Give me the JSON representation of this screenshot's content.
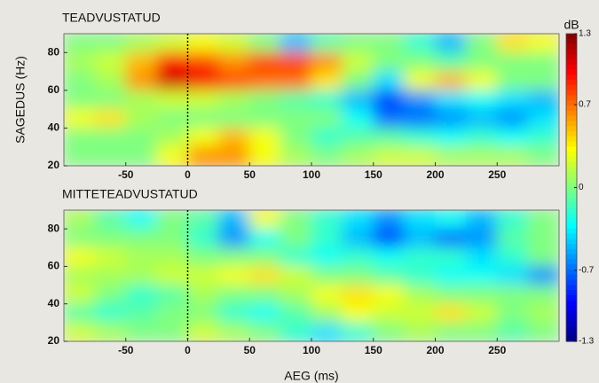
{
  "chart_data": [
    {
      "type": "heatmap",
      "title": "TEADVUSTATUD",
      "ylabel": "SAGEDUS (Hz)",
      "x": [
        -87.5,
        -62.5,
        -37.5,
        -12.5,
        12.5,
        37.5,
        62.5,
        87.5,
        112.5,
        137.5,
        162.5,
        187.5,
        212.5,
        237.5,
        262.5,
        287.5
      ],
      "y": [
        85,
        75,
        65,
        55,
        45,
        35,
        25
      ],
      "values": [
        [
          0,
          0,
          0.1,
          0.2,
          0.3,
          0.2,
          0,
          -0.5,
          -0.1,
          0,
          0,
          -0.2,
          -0.5,
          0,
          0.4,
          0.3
        ],
        [
          0.1,
          0.2,
          0.5,
          0.9,
          0.8,
          0.6,
          0.8,
          0.8,
          0.6,
          0.2,
          0,
          0,
          -0.1,
          0,
          0,
          0
        ],
        [
          0,
          0.1,
          0.6,
          1.1,
          1.0,
          0.8,
          0.7,
          0.7,
          0.4,
          0,
          -0.4,
          0.3,
          0.5,
          0.3,
          0,
          0
        ],
        [
          0,
          0,
          0.1,
          0.2,
          0.2,
          0.1,
          0,
          -0.1,
          -0.2,
          -0.5,
          -0.8,
          -0.6,
          -0.4,
          -0.3,
          -0.4,
          -0.5
        ],
        [
          0.3,
          0.4,
          0.1,
          0,
          0,
          0,
          0,
          0,
          0,
          -0.3,
          -0.7,
          -0.7,
          -0.6,
          -0.5,
          -0.6,
          -0.4
        ],
        [
          0,
          0,
          0,
          0.1,
          0.3,
          0.5,
          0.3,
          0,
          -0.2,
          -0.1,
          -0.1,
          -0.2,
          -0.3,
          -0.2,
          -0.3,
          -0.2
        ],
        [
          0,
          0,
          0,
          0.3,
          0.6,
          0.6,
          0.3,
          0.1,
          0,
          0.1,
          0.2,
          0.2,
          0.1,
          0.1,
          0.1,
          0
        ]
      ],
      "xlim": [
        -100,
        300
      ],
      "ylim": [
        20,
        90
      ],
      "xticks": [
        -50,
        0,
        50,
        100,
        150,
        200,
        250
      ],
      "yticks": [
        20,
        40,
        60,
        80
      ],
      "vline": 0,
      "colorbar": {
        "label": "dB",
        "lim": [
          -1.3,
          1.3
        ],
        "ticks": [
          1.3,
          0.7,
          0,
          -0.7,
          -1.3
        ]
      }
    },
    {
      "type": "heatmap",
      "title": "MITTETEADVUSTATUD",
      "xlabel": "AEG (ms)",
      "x": [
        -87.5,
        -62.5,
        -37.5,
        -12.5,
        12.5,
        37.5,
        62.5,
        87.5,
        112.5,
        137.5,
        162.5,
        187.5,
        212.5,
        237.5,
        262.5,
        287.5
      ],
      "y": [
        85,
        75,
        65,
        55,
        45,
        35,
        25
      ],
      "values": [
        [
          0.1,
          -0.1,
          -0.3,
          0,
          -0.1,
          -0.5,
          0.3,
          0,
          -0.2,
          -0.4,
          -0.6,
          -0.4,
          -0.3,
          -0.5,
          -0.2,
          0
        ],
        [
          0,
          0,
          0,
          0,
          -0.2,
          -0.6,
          -0.3,
          0,
          -0.2,
          -0.5,
          -0.8,
          -0.5,
          -0.7,
          -0.6,
          -0.1,
          0
        ],
        [
          0.3,
          0.2,
          0.1,
          0.1,
          0,
          0,
          0,
          -0.2,
          -0.3,
          -0.2,
          -0.3,
          -0.2,
          -0.2,
          -0.4,
          -0.2,
          0
        ],
        [
          0.1,
          0.1,
          0.1,
          0.2,
          0.2,
          0.3,
          0.4,
          0.2,
          0,
          0,
          -0.1,
          -0.2,
          -0.3,
          -0.3,
          -0.4,
          -0.6
        ],
        [
          0.2,
          0,
          -0.2,
          -0.1,
          0.1,
          0,
          0,
          0.1,
          0.3,
          0.4,
          0.3,
          0.1,
          0,
          0,
          0,
          0
        ],
        [
          -0.1,
          -0.2,
          -0.1,
          0,
          0,
          -0.2,
          -0.3,
          -0.1,
          0.1,
          0.3,
          0.2,
          0.2,
          0.4,
          0.2,
          0,
          0.1
        ],
        [
          0.2,
          0.1,
          0,
          0,
          0.2,
          0.1,
          0,
          -0.2,
          -0.4,
          -0.2,
          0,
          0.1,
          0,
          0,
          -0.1,
          0
        ]
      ],
      "xlim": [
        -100,
        300
      ],
      "ylim": [
        20,
        90
      ],
      "xticks": [
        -50,
        0,
        50,
        100,
        150,
        200,
        250
      ],
      "yticks": [
        20,
        40,
        60,
        80
      ],
      "vline": 0
    }
  ]
}
